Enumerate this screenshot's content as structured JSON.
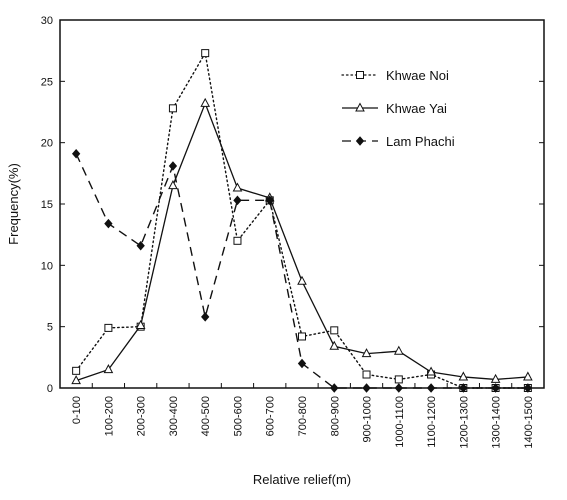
{
  "chart_data": {
    "type": "line",
    "xlabel": "Relative relief(m)",
    "ylabel": "Frequency(%)",
    "ylim": [
      0,
      30
    ],
    "yticks": [
      "0",
      "5",
      "10",
      "15",
      "20",
      "25",
      "30"
    ],
    "categories": [
      "0-100",
      "100-200",
      "200-300",
      "300-400",
      "400-500",
      "500-600",
      "600-700",
      "700-800",
      "800-900",
      "900-1000",
      "1000-1100",
      "1100-1200",
      "1200-1300",
      "1300-1400",
      "1400-1500"
    ],
    "legend_position": "top-right",
    "series": [
      {
        "name": "Khwae Noi",
        "line_style": "dotted",
        "marker": "square",
        "values": [
          1.4,
          4.9,
          5.0,
          22.8,
          27.3,
          12.0,
          15.3,
          4.2,
          4.7,
          1.1,
          0.7,
          1.1,
          0.0,
          0.0,
          0.0
        ]
      },
      {
        "name": "Khwae Yai",
        "line_style": "solid",
        "marker": "triangle",
        "values": [
          0.6,
          1.5,
          5.1,
          16.5,
          23.2,
          16.3,
          15.5,
          8.7,
          3.4,
          2.8,
          3.0,
          1.3,
          0.9,
          0.7,
          0.9
        ]
      },
      {
        "name": "Lam Phachi",
        "line_style": "dashed",
        "marker": "diamond",
        "values": [
          19.1,
          13.4,
          11.6,
          18.1,
          5.8,
          15.3,
          15.3,
          2.0,
          0.0,
          0.0,
          0.0,
          0.0,
          0.0,
          0.0,
          0.0
        ]
      }
    ]
  }
}
